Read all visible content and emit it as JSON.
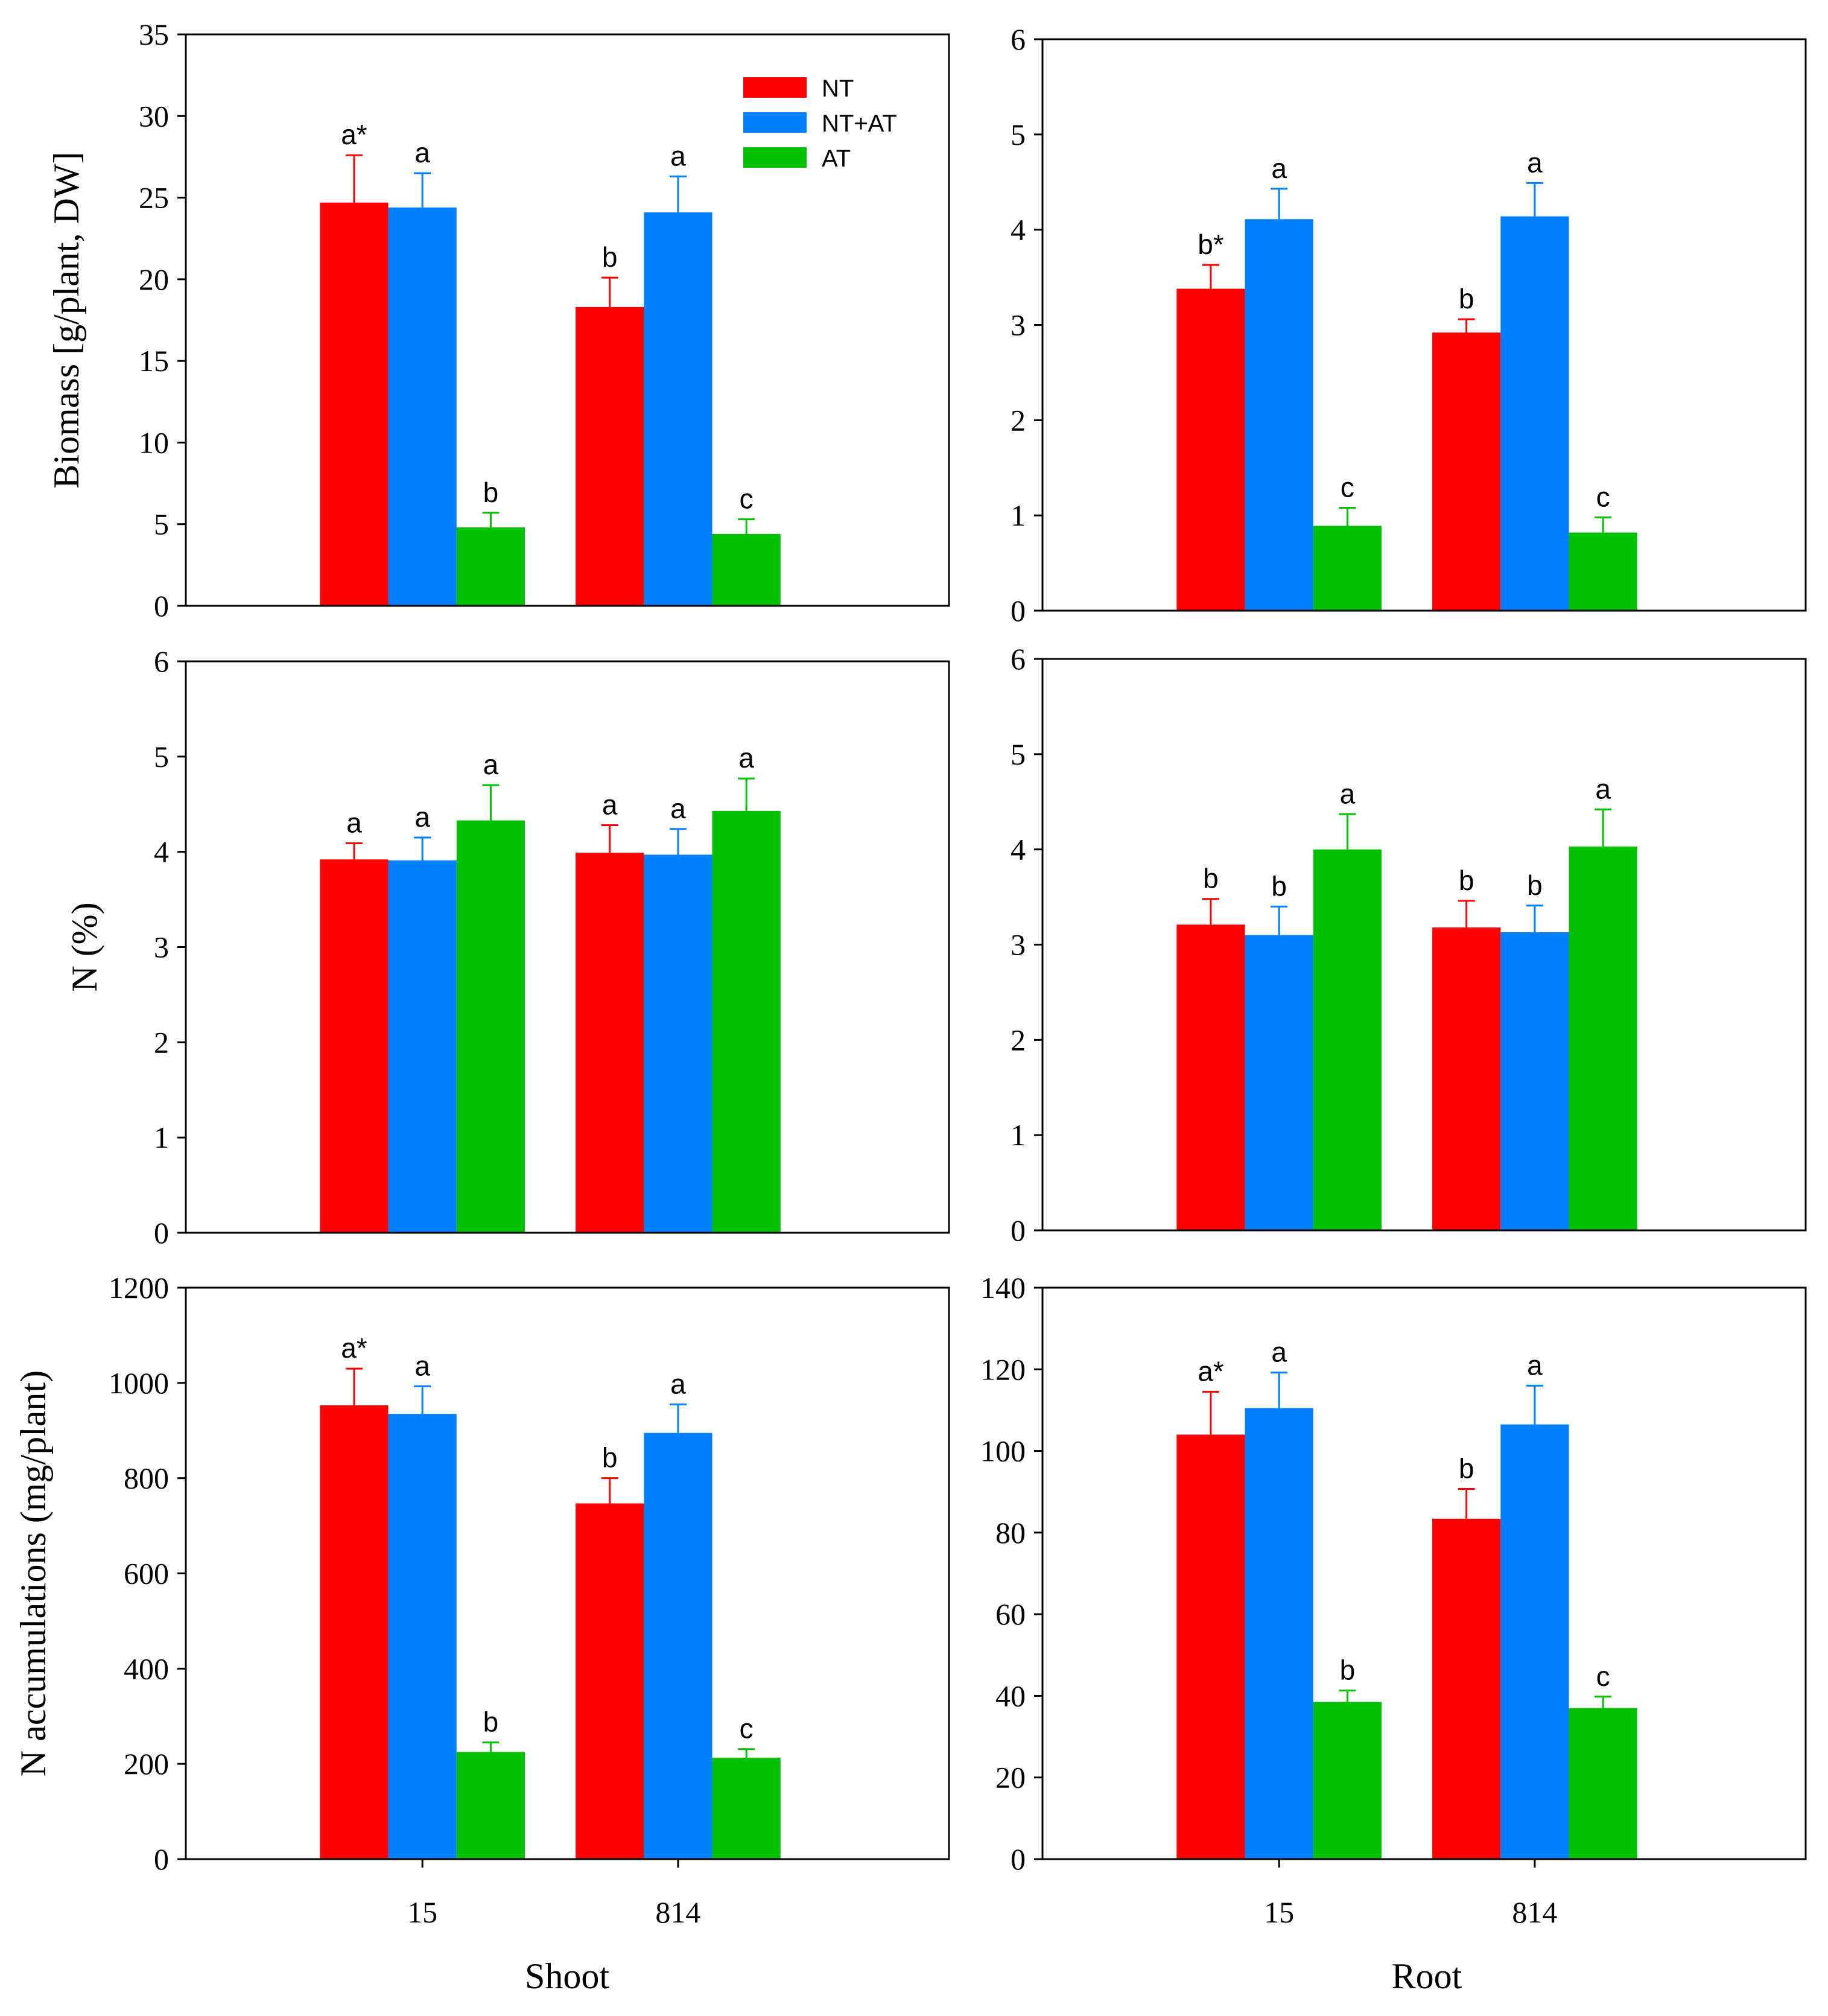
{
  "colors": {
    "NT": "#ff0000",
    "NT+AT": "#0080ff",
    "AT": "#00c000"
  },
  "legend": [
    "NT",
    "NT+AT",
    "AT"
  ],
  "column_labels": {
    "shoot": "Shoot",
    "root": "Root"
  },
  "chart_data": [
    {
      "id": "shoot-biomass",
      "type": "bar",
      "panel": "shoot",
      "ylabel": "Biomass [g/plant, DW]",
      "ylim": [
        0,
        35
      ],
      "ytick_step": 5,
      "categories": [
        "15",
        "814"
      ],
      "show_xticklabels": false,
      "legend": "top-right",
      "series": [
        {
          "name": "NT",
          "values": [
            24.7,
            18.3
          ],
          "errors": [
            2.9,
            1.8
          ],
          "labels": [
            "a*",
            "b"
          ]
        },
        {
          "name": "NT+AT",
          "values": [
            24.4,
            24.1
          ],
          "errors": [
            2.1,
            2.2
          ],
          "labels": [
            "a",
            "a"
          ]
        },
        {
          "name": "AT",
          "values": [
            4.8,
            4.4
          ],
          "errors": [
            0.9,
            0.9
          ],
          "labels": [
            "b",
            "c"
          ]
        }
      ]
    },
    {
      "id": "root-biomass",
      "type": "bar",
      "panel": "root",
      "ylabel": "",
      "ylim": [
        0,
        6
      ],
      "ytick_step": 1,
      "categories": [
        "15",
        "814"
      ],
      "show_xticklabels": false,
      "series": [
        {
          "name": "NT",
          "values": [
            3.38,
            2.92
          ],
          "errors": [
            0.25,
            0.14
          ],
          "labels": [
            "b*",
            "b"
          ]
        },
        {
          "name": "NT+AT",
          "values": [
            4.11,
            4.14
          ],
          "errors": [
            0.32,
            0.35
          ],
          "labels": [
            "a",
            "a"
          ]
        },
        {
          "name": "AT",
          "values": [
            0.89,
            0.82
          ],
          "errors": [
            0.19,
            0.16
          ],
          "labels": [
            "c",
            "c"
          ]
        }
      ]
    },
    {
      "id": "shoot-n-percent",
      "type": "bar",
      "panel": "shoot",
      "ylabel": "N (%)",
      "ylim": [
        0,
        6
      ],
      "ytick_step": 1,
      "categories": [
        "15",
        "814"
      ],
      "show_xticklabels": false,
      "series": [
        {
          "name": "NT",
          "values": [
            3.92,
            3.99
          ],
          "errors": [
            0.17,
            0.29
          ],
          "labels": [
            "a",
            "a"
          ]
        },
        {
          "name": "NT+AT",
          "values": [
            3.91,
            3.97
          ],
          "errors": [
            0.24,
            0.27
          ],
          "labels": [
            "a",
            "a"
          ]
        },
        {
          "name": "AT",
          "values": [
            4.33,
            4.43
          ],
          "errors": [
            0.37,
            0.34
          ],
          "labels": [
            "a",
            "a"
          ]
        }
      ]
    },
    {
      "id": "root-n-percent",
      "type": "bar",
      "panel": "root",
      "ylabel": "",
      "ylim": [
        0,
        6
      ],
      "ytick_step": 1,
      "categories": [
        "15",
        "814"
      ],
      "show_xticklabels": false,
      "series": [
        {
          "name": "NT",
          "values": [
            3.21,
            3.18
          ],
          "errors": [
            0.27,
            0.28
          ],
          "labels": [
            "b",
            "b"
          ]
        },
        {
          "name": "NT+AT",
          "values": [
            3.1,
            3.13
          ],
          "errors": [
            0.3,
            0.28
          ],
          "labels": [
            "b",
            "b"
          ]
        },
        {
          "name": "AT",
          "values": [
            4.0,
            4.03
          ],
          "errors": [
            0.37,
            0.39
          ],
          "labels": [
            "a",
            "a"
          ]
        }
      ]
    },
    {
      "id": "shoot-n-accumulation",
      "type": "bar",
      "panel": "shoot",
      "ylabel": "N accumulations (mg/plant)",
      "ylim": [
        0,
        1200
      ],
      "ytick_step": 200,
      "categories": [
        "15",
        "814"
      ],
      "show_xticklabels": true,
      "xlabel": "Shoot",
      "series": [
        {
          "name": "NT",
          "values": [
            953,
            747
          ],
          "errors": [
            77,
            53
          ],
          "labels": [
            "a*",
            "b"
          ]
        },
        {
          "name": "NT+AT",
          "values": [
            935,
            895
          ],
          "errors": [
            58,
            60
          ],
          "labels": [
            "a",
            "a"
          ]
        },
        {
          "name": "AT",
          "values": [
            225,
            213
          ],
          "errors": [
            20,
            18
          ],
          "labels": [
            "b",
            "c"
          ]
        }
      ]
    },
    {
      "id": "root-n-accumulation",
      "type": "bar",
      "panel": "root",
      "ylabel": "",
      "ylim": [
        0,
        140
      ],
      "ytick_step": 20,
      "categories": [
        "15",
        "814"
      ],
      "show_xticklabels": true,
      "xlabel": "Root",
      "series": [
        {
          "name": "NT",
          "values": [
            104,
            83.4
          ],
          "errors": [
            10.5,
            7.3
          ],
          "labels": [
            "a*",
            "b"
          ]
        },
        {
          "name": "NT+AT",
          "values": [
            110.5,
            106.5
          ],
          "errors": [
            8.7,
            9.5
          ],
          "labels": [
            "a",
            "a"
          ]
        },
        {
          "name": "AT",
          "values": [
            38.5,
            37
          ],
          "errors": [
            2.8,
            2.8
          ],
          "labels": [
            "b",
            "c"
          ]
        }
      ]
    }
  ]
}
